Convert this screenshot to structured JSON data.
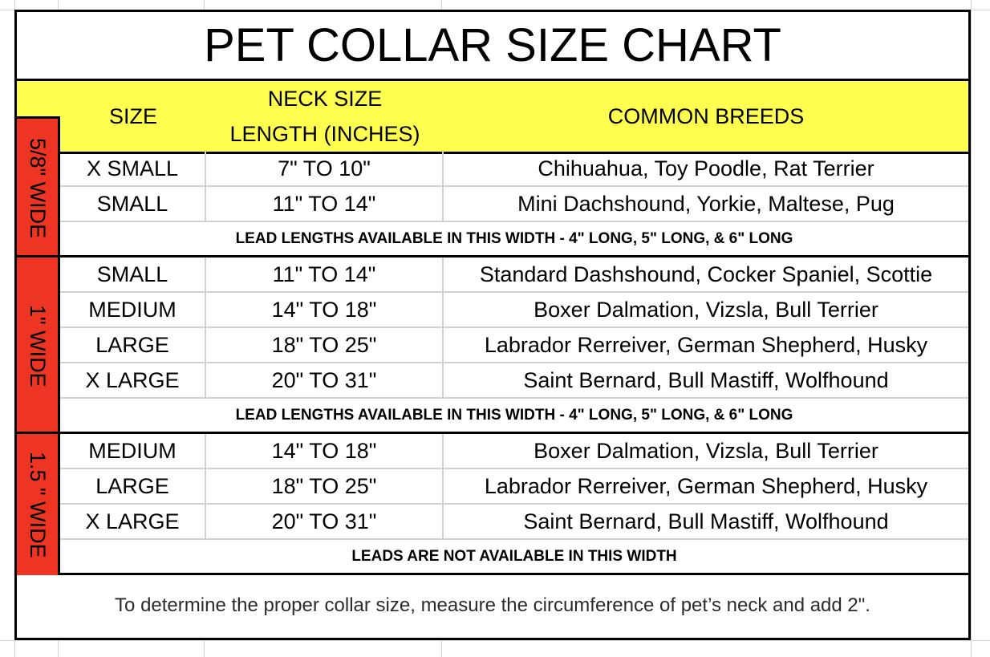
{
  "title": "PET COLLAR SIZE CHART",
  "colors": {
    "header_bg": "#ffff4f",
    "width_label_bg": "#ee3524"
  },
  "header": {
    "size": "SIZE",
    "neck_line1": "NECK SIZE",
    "neck_line2": "LENGTH (INCHES)",
    "breeds": "COMMON BREEDS"
  },
  "groups": [
    {
      "width_label": "5/8\" WIDE",
      "rows": [
        {
          "size": "X SMALL",
          "neck": "7\" TO 10\"",
          "breeds": "Chihuahua, Toy Poodle, Rat Terrier"
        },
        {
          "size": "SMALL",
          "neck": "11\" TO 14\"",
          "breeds": "Mini Dachshound, Yorkie, Maltese, Pug"
        }
      ],
      "note": "LEAD LENGTHS AVAILABLE IN THIS WIDTH - 4\" LONG, 5\" LONG, & 6\" LONG"
    },
    {
      "width_label": "1\" WIDE",
      "rows": [
        {
          "size": "SMALL",
          "neck": "11\" TO 14\"",
          "breeds": "Standard Dashshound, Cocker Spaniel, Scottie"
        },
        {
          "size": "MEDIUM",
          "neck": "14\" TO 18\"",
          "breeds": "Boxer Dalmation, Vizsla, Bull Terrier"
        },
        {
          "size": "LARGE",
          "neck": "18\" TO 25\"",
          "breeds": "Labrador Rerreiver, German Shepherd, Husky"
        },
        {
          "size": "X LARGE",
          "neck": "20\" TO 31\"",
          "breeds": "Saint Bernard, Bull Mastiff, Wolfhound"
        }
      ],
      "note": "LEAD LENGTHS AVAILABLE IN THIS WIDTH  - 4\" LONG, 5\" LONG, & 6\" LONG"
    },
    {
      "width_label": "1.5 \" WIDE",
      "rows": [
        {
          "size": "MEDIUM",
          "neck": "14\" TO 18\"",
          "breeds": "Boxer Dalmation, Vizsla, Bull Terrier"
        },
        {
          "size": "LARGE",
          "neck": "18\" TO 25\"",
          "breeds": "Labrador Rerreiver, German Shepherd, Husky"
        },
        {
          "size": "X LARGE",
          "neck": "20\" TO 31\"",
          "breeds": "Saint Bernard, Bull Mastiff, Wolfhound"
        }
      ],
      "note": "LEADS ARE NOT AVAILABLE IN THIS WIDTH"
    }
  ],
  "footer": "To determine the proper collar size, measure the circumference of pet’s neck and add 2\"."
}
